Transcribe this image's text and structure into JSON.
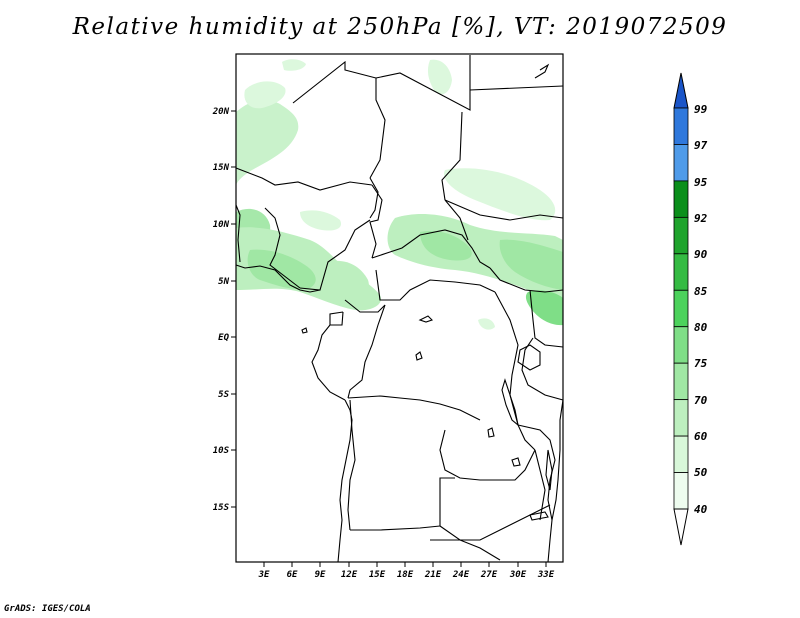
{
  "title": "Relative humidity at 250hPa [%], VT: 2019072509",
  "credit": "GrADS: IGES/COLA",
  "map": {
    "lon_labels": [
      "3E",
      "6E",
      "9E",
      "12E",
      "15E",
      "18E",
      "21E",
      "24E",
      "27E",
      "30E",
      "33E"
    ],
    "lat_labels": [
      "20N",
      "15N",
      "10N",
      "5N",
      "EQ",
      "5S",
      "10S",
      "15S"
    ]
  },
  "colorbar": {
    "levels": [
      "99",
      "97",
      "95",
      "92",
      "90",
      "85",
      "80",
      "75",
      "70",
      "60",
      "50",
      "40"
    ],
    "colors": [
      "#1a55c8",
      "#2f78dc",
      "#4f9be9",
      "#0b8f1b",
      "#1fa42d",
      "#35bb43",
      "#4cd25c",
      "#7fde87",
      "#a0e7a4",
      "#bdefbf",
      "#d8f7d9",
      "#eefcef"
    ]
  },
  "fields": {
    "palette": {
      "level_40": "#d8f7d9",
      "level_50": "#bdefbf",
      "level_60": "#a0e7a4"
    }
  }
}
